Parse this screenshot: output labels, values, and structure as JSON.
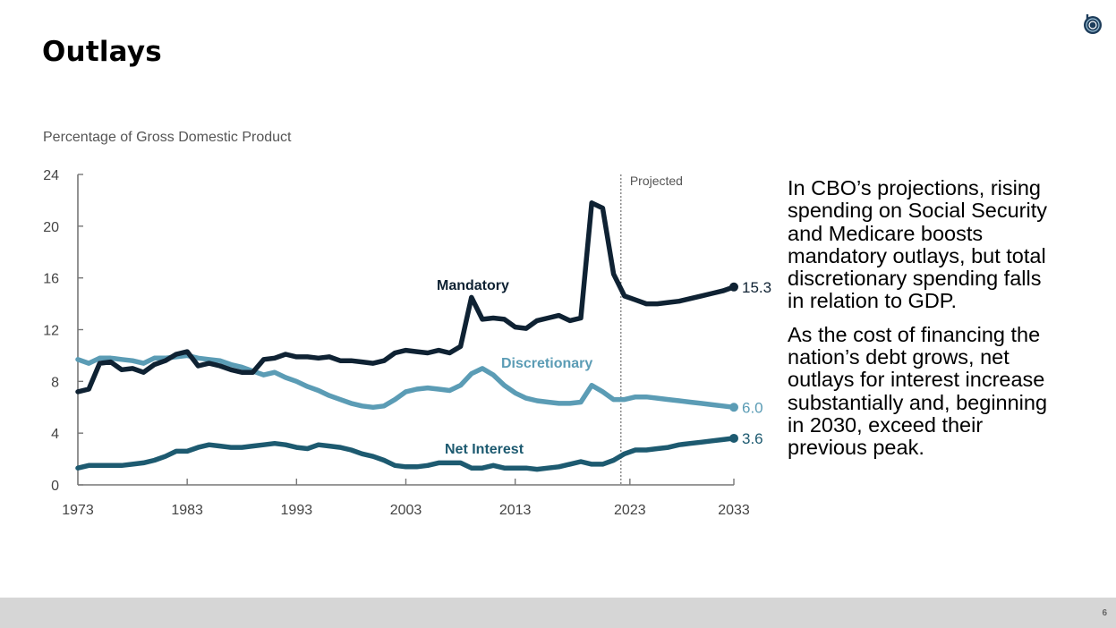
{
  "slide": {
    "title": "Outlays",
    "page_number": "6",
    "logo_icon": "cbo-logo-icon"
  },
  "sidebar": {
    "paragraphs": [
      "In CBO’s projections, rising spending on Social Security and Medicare boosts mandatory outlays, but total discretionary spending falls in relation to GDP.",
      "As the cost of financing the nation’s debt grows, net outlays for interest increase substantially and, beginning in 2030, exceed their previous peak."
    ]
  },
  "colors": {
    "mandatory": "#0f2233",
    "discretionary": "#5b9cb5",
    "net_interest": "#1d5a70",
    "axis": "#666666",
    "footer": "#d6d6d6"
  },
  "chart_data": {
    "type": "line",
    "title": "",
    "ylabel": "Percentage of Gross Domestic Product",
    "xlabel": "",
    "xlim": [
      1973,
      2033
    ],
    "ylim": [
      0,
      24
    ],
    "yticks": [
      0,
      4,
      8,
      12,
      16,
      20,
      24
    ],
    "xticks": [
      1973,
      1983,
      1993,
      2003,
      2013,
      2023,
      2033
    ],
    "grid": false,
    "projection_start": 2023,
    "projection_label": "Projected",
    "x": [
      1973,
      1974,
      1975,
      1976,
      1977,
      1978,
      1979,
      1980,
      1981,
      1982,
      1983,
      1984,
      1985,
      1986,
      1987,
      1988,
      1989,
      1990,
      1991,
      1992,
      1993,
      1994,
      1995,
      1996,
      1997,
      1998,
      1999,
      2000,
      2001,
      2002,
      2003,
      2004,
      2005,
      2006,
      2007,
      2008,
      2009,
      2010,
      2011,
      2012,
      2013,
      2014,
      2015,
      2016,
      2017,
      2018,
      2019,
      2020,
      2021,
      2022,
      2023,
      2024,
      2025,
      2026,
      2027,
      2028,
      2029,
      2030,
      2031,
      2032,
      2033
    ],
    "series": [
      {
        "name": "Mandatory",
        "end_label": "15.3",
        "values": [
          7.2,
          7.4,
          9.4,
          9.5,
          8.9,
          9.0,
          8.7,
          9.3,
          9.6,
          10.1,
          10.3,
          9.2,
          9.4,
          9.2,
          8.9,
          8.7,
          8.7,
          9.7,
          9.8,
          10.1,
          9.9,
          9.9,
          9.8,
          9.9,
          9.6,
          9.6,
          9.5,
          9.4,
          9.6,
          10.2,
          10.4,
          10.3,
          10.2,
          10.4,
          10.2,
          10.7,
          14.5,
          12.8,
          12.9,
          12.8,
          12.2,
          12.1,
          12.7,
          12.9,
          13.1,
          12.7,
          12.9,
          21.8,
          21.4,
          16.3,
          14.6,
          14.3,
          14.0,
          14.0,
          14.1,
          14.2,
          14.4,
          14.6,
          14.8,
          15.0,
          15.3
        ]
      },
      {
        "name": "Discretionary",
        "end_label": "6.0",
        "values": [
          9.7,
          9.4,
          9.8,
          9.8,
          9.7,
          9.6,
          9.4,
          9.8,
          9.8,
          9.9,
          10.0,
          9.8,
          9.7,
          9.6,
          9.3,
          9.1,
          8.8,
          8.5,
          8.7,
          8.3,
          8.0,
          7.6,
          7.3,
          6.9,
          6.6,
          6.3,
          6.1,
          6.0,
          6.1,
          6.6,
          7.2,
          7.4,
          7.5,
          7.4,
          7.3,
          7.7,
          8.6,
          9.0,
          8.5,
          7.7,
          7.1,
          6.7,
          6.5,
          6.4,
          6.3,
          6.3,
          6.4,
          7.7,
          7.2,
          6.6,
          6.6,
          6.8,
          6.8,
          6.7,
          6.6,
          6.5,
          6.4,
          6.3,
          6.2,
          6.1,
          6.0
        ]
      },
      {
        "name": "Net Interest",
        "end_label": "3.6",
        "values": [
          1.3,
          1.5,
          1.5,
          1.5,
          1.5,
          1.6,
          1.7,
          1.9,
          2.2,
          2.6,
          2.6,
          2.9,
          3.1,
          3.0,
          2.9,
          2.9,
          3.0,
          3.1,
          3.2,
          3.1,
          2.9,
          2.8,
          3.1,
          3.0,
          2.9,
          2.7,
          2.4,
          2.2,
          1.9,
          1.5,
          1.4,
          1.4,
          1.5,
          1.7,
          1.7,
          1.7,
          1.3,
          1.3,
          1.5,
          1.3,
          1.3,
          1.3,
          1.2,
          1.3,
          1.4,
          1.6,
          1.8,
          1.6,
          1.6,
          1.9,
          2.4,
          2.7,
          2.7,
          2.8,
          2.9,
          3.1,
          3.2,
          3.3,
          3.4,
          3.5,
          3.6
        ]
      }
    ]
  }
}
